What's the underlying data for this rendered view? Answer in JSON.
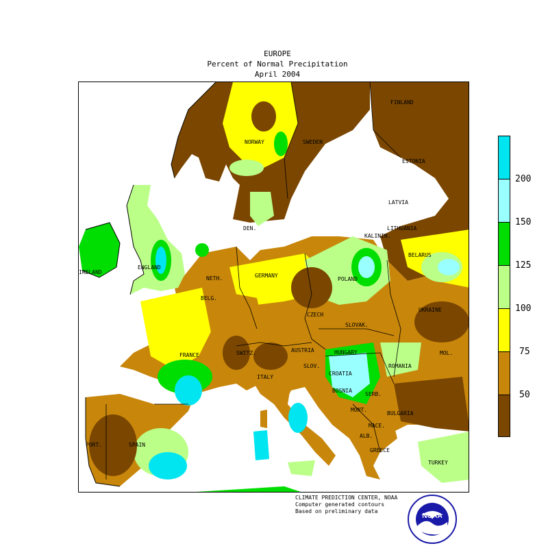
{
  "title": {
    "line1": "EUROPE",
    "line2": "Percent of Normal Precipitation",
    "line3": "April 2004"
  },
  "countries": [
    {
      "name": "FINLAND"
    },
    {
      "name": "NORWAY"
    },
    {
      "name": "SWEDEN"
    },
    {
      "name": "ESTONIA"
    },
    {
      "name": "LATVIA"
    },
    {
      "name": "DEN."
    },
    {
      "name": "LITHUANIA"
    },
    {
      "name": "KALININ."
    },
    {
      "name": "BELARUS"
    },
    {
      "name": "IRELAND"
    },
    {
      "name": "ENGLAND"
    },
    {
      "name": "NETH."
    },
    {
      "name": "GERMANY"
    },
    {
      "name": "POLAND"
    },
    {
      "name": "BELG."
    },
    {
      "name": "CZECH"
    },
    {
      "name": "UKRAINE"
    },
    {
      "name": "SLOVAK."
    },
    {
      "name": "FRANCE"
    },
    {
      "name": "SWITZ."
    },
    {
      "name": "AUSTRIA"
    },
    {
      "name": "HUNGARY"
    },
    {
      "name": "MOL."
    },
    {
      "name": "SLOV."
    },
    {
      "name": "CROATIA"
    },
    {
      "name": "ROMANIA"
    },
    {
      "name": "ITALY"
    },
    {
      "name": "BOSNIA"
    },
    {
      "name": "SERB."
    },
    {
      "name": "BULGARIA"
    },
    {
      "name": "MONT."
    },
    {
      "name": "MACE."
    },
    {
      "name": "PORT."
    },
    {
      "name": "SPAIN"
    },
    {
      "name": "ALB."
    },
    {
      "name": "GREECE"
    },
    {
      "name": "TURKEY"
    }
  ],
  "legend": {
    "levels": [
      "200",
      "150",
      "125",
      "100",
      "75",
      "50"
    ],
    "colors": {
      "above_200": "#00e5f0",
      "150_200": "#99ffff",
      "125_150": "#00dd00",
      "100_125": "#bbff88",
      "75_100": "#ffff00",
      "50_75": "#c8860a",
      "below_50": "#7a4600"
    }
  },
  "credits": {
    "line1": "CLIMATE PREDICTION CENTER, NOAA",
    "line2": "Computer generated contours",
    "line3": "Based on preliminary data"
  },
  "logo": {
    "text": "NOAA",
    "icon": "noaa-logo-icon"
  }
}
